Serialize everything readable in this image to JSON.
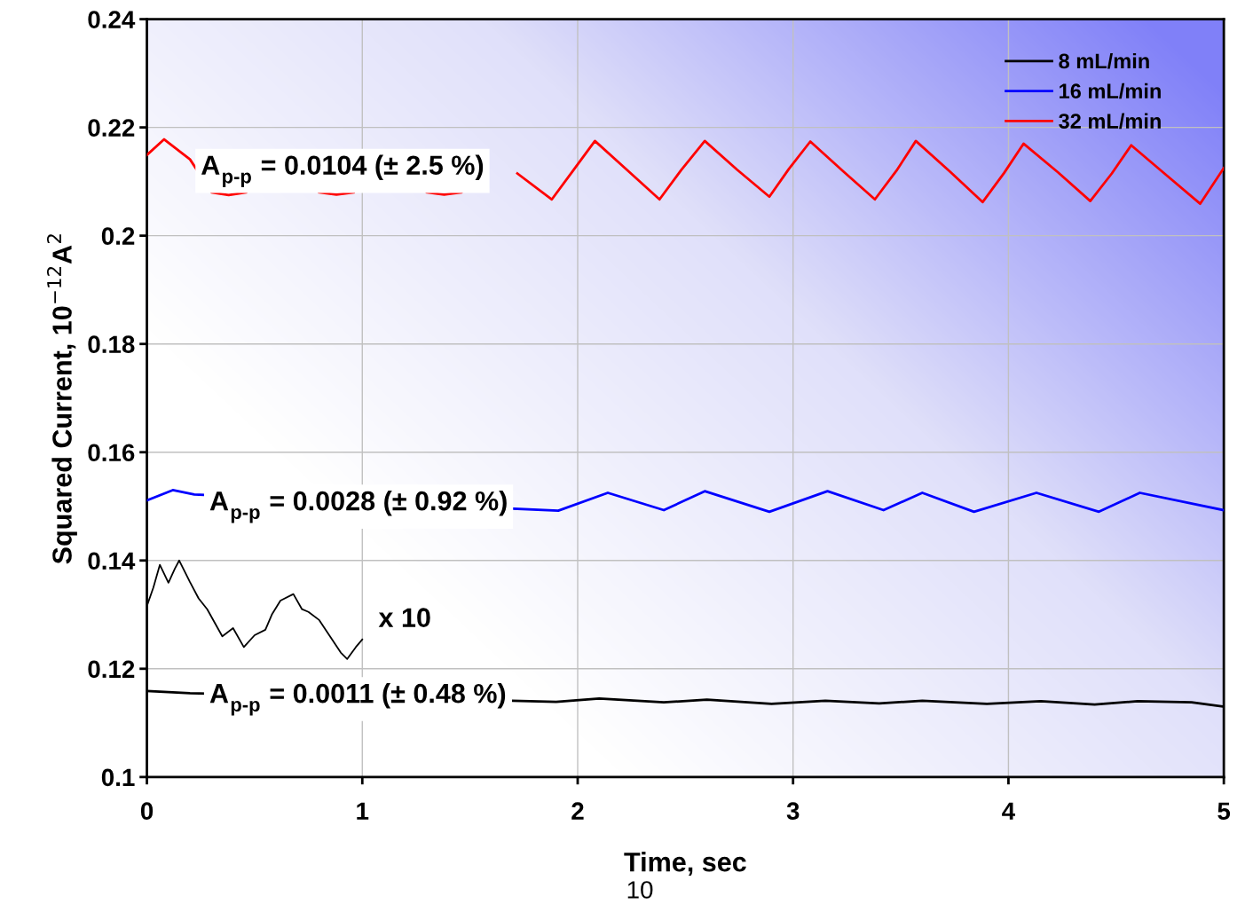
{
  "chart_data": {
    "type": "line",
    "xlabel": "Time, sec",
    "ylabel": "Squared Current, 10$^{−12}$A$^{2}$",
    "xlim": [
      0,
      5
    ],
    "xticks": [
      0,
      1,
      2,
      3,
      4,
      5
    ],
    "ylim": [
      0.1,
      0.24
    ],
    "yticks": [
      0.1,
      0.12,
      0.14,
      0.16,
      0.18,
      0.2,
      0.22,
      0.24
    ],
    "grid": true,
    "legend": "top right",
    "marker": "none",
    "line_style": "solid",
    "series": [
      {
        "name": "8 mL/min",
        "color": "#000000",
        "x": [
          0,
          0.1,
          0.2,
          1.9,
          2.1,
          2.4,
          2.6,
          2.9,
          3.15,
          3.4,
          3.6,
          3.9,
          4.15,
          4.4,
          4.6,
          4.85,
          5
        ],
        "values": [
          0.1159,
          0.1157,
          0.1155,
          0.1139,
          0.1145,
          0.1138,
          0.1143,
          0.1135,
          0.1141,
          0.1136,
          0.1141,
          0.1135,
          0.114,
          0.1134,
          0.114,
          0.1138,
          0.113
        ]
      },
      {
        "name": "16 mL/min",
        "color": "#0000ff",
        "x": [
          0,
          0.12,
          0.22,
          1.91,
          2.14,
          2.4,
          2.59,
          2.89,
          3.16,
          3.42,
          3.6,
          3.84,
          4.13,
          4.42,
          4.61,
          5
        ],
        "values": [
          0.1511,
          0.153,
          0.1522,
          0.1492,
          0.1525,
          0.1493,
          0.1528,
          0.149,
          0.1528,
          0.1493,
          0.1525,
          0.149,
          0.1525,
          0.149,
          0.1525,
          0.1493
        ]
      },
      {
        "name": "32 mL/min",
        "color": "#ff0000",
        "x": [
          0,
          0.08,
          0.2,
          0.3,
          0.38,
          0.46,
          0.6,
          0.8,
          0.88,
          0.96,
          1.1,
          1.3,
          1.38,
          1.46,
          1.6,
          1.72,
          1.88,
          1.98,
          2.08,
          2.23,
          2.38,
          2.48,
          2.59,
          2.74,
          2.89,
          2.98,
          3.08,
          3.23,
          3.38,
          3.48,
          3.57,
          3.73,
          3.88,
          3.98,
          4.07,
          4.23,
          4.38,
          4.48,
          4.57,
          4.73,
          4.89,
          5
        ],
        "values": [
          0.2149,
          0.2178,
          0.2141,
          0.208,
          0.2075,
          0.208,
          null,
          0.208,
          0.2076,
          0.208,
          null,
          0.208,
          0.2076,
          0.208,
          null,
          0.2115,
          0.2067,
          0.2121,
          0.2175,
          0.2121,
          0.2067,
          0.2121,
          0.2175,
          0.2122,
          0.2072,
          0.2123,
          0.2174,
          0.212,
          0.2067,
          0.212,
          0.2175,
          0.2118,
          0.2062,
          0.2116,
          0.217,
          0.2117,
          0.2064,
          0.2115,
          0.2167,
          0.2113,
          0.2059,
          0.2125
        ]
      },
      {
        "color": "#000000",
        "x": [
          0,
          0.03,
          0.06,
          0.1,
          0.13,
          0.15,
          0.2,
          0.24,
          0.28,
          0.35,
          0.4,
          0.45,
          0.5,
          0.55,
          0.58,
          0.62,
          0.68,
          0.72,
          0.75,
          0.8,
          0.85,
          0.9,
          0.93,
          0.97,
          1.0
        ],
        "values": [
          0.1316,
          0.135,
          0.1392,
          0.1359,
          0.1385,
          0.14,
          0.136,
          0.133,
          0.131,
          0.126,
          0.1275,
          0.124,
          0.1262,
          0.1272,
          0.13,
          0.1326,
          0.1338,
          0.131,
          0.1305,
          0.129,
          0.126,
          0.123,
          0.1218,
          0.124,
          0.1254
        ]
      }
    ],
    "annotations": [
      "A$_{p-p}$ = 0.0104 (± 2.5 %)",
      "A$_{p-p}$ = 0.0028 (± 0.92 %)",
      "A$_{p-p}$ = 0.0011 (± 0.48 %)",
      "x 10",
      "10"
    ]
  }
}
